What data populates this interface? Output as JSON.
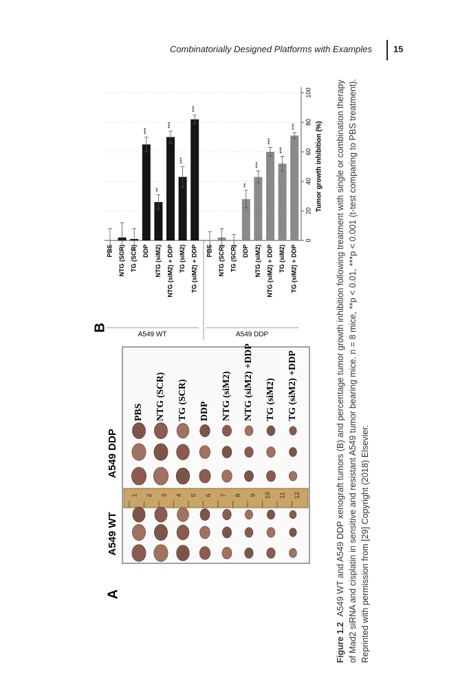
{
  "header": {
    "running_title": "Combinatorially Designed Platforms with Examples",
    "page_number": "15"
  },
  "figure": {
    "panel_a": {
      "label": "A",
      "columns": [
        "A549 WT",
        "A549 DDP"
      ],
      "rows": [
        "PBS",
        "NTG (SCR)",
        "TG (SCR)",
        "DDP",
        "NTG (siM2)",
        "NTG (siM2) +DDP",
        "TG (siM2)",
        "TG (siM2) +DDP"
      ],
      "ruler": [
        "1",
        "2",
        "3",
        "4",
        "5",
        "6",
        "7",
        "8",
        "9",
        "10",
        "11",
        "12"
      ]
    },
    "caption": {
      "label": "Figure 1.2",
      "text": "A549 WT and A549 DDP xenograft tumors (B) and percentage tumor growth inhibition following treatment with single or combination therapy of Mad2 siRNA and cisplatin in sensitive and resistant A549 tumor bearing mice. n = 8 mice, **p < 0.01, ***p < 0.001 (t-test comparing to PBS treatment). Reprinted with permission from [29] Copyright (2018) Elsevier."
    }
  },
  "chart_data": {
    "type": "bar",
    "orientation": "horizontal",
    "panel_label": "B",
    "x_label": "Tumor growth inhibition (%)",
    "xlim": [
      0,
      100
    ],
    "xticks": [
      0,
      20,
      40,
      60,
      80,
      100
    ],
    "grid": true,
    "groups": [
      {
        "name": "A549 WT",
        "color": "#151515",
        "categories": [
          "PBS",
          "NTG (SCR)",
          "TG (SCR)",
          "DDP",
          "NTG (siM2)",
          "NTG (siM2) + DDP",
          "TG (siM2)",
          "TG (siM2) + DDP"
        ],
        "values": [
          0,
          2,
          1,
          65,
          26,
          70,
          43,
          82
        ],
        "errors": [
          8,
          10,
          7,
          5,
          5,
          4,
          7,
          3
        ],
        "annotations": [
          null,
          null,
          null,
          "***",
          "**",
          "***",
          "***",
          "***"
        ]
      },
      {
        "name": "A549 DDP",
        "color": "#8a8a8a",
        "categories": [
          "PBS",
          "NTG (SCR)",
          "TG (SCR)",
          "DDP",
          "NTG (siM2)",
          "NTG (siM2) + DDP",
          "TG (siM2)",
          "TG (siM2) + DDP"
        ],
        "values": [
          0,
          2,
          0,
          28,
          43,
          60,
          52,
          71
        ],
        "errors": [
          6,
          6,
          4,
          6,
          4,
          3,
          5,
          2
        ],
        "annotations": [
          null,
          null,
          null,
          "**",
          "***",
          "***",
          "***",
          "***"
        ]
      }
    ]
  }
}
